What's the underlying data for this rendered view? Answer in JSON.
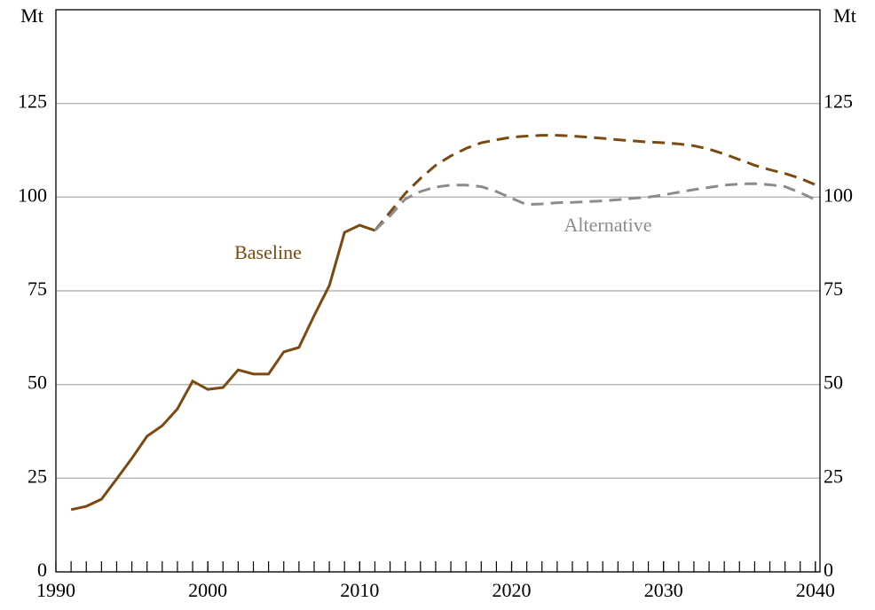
{
  "chart_data": {
    "type": "line",
    "y_label": "Mt",
    "x": [
      1991,
      1992,
      1993,
      1994,
      1995,
      1996,
      1997,
      1998,
      1999,
      2000,
      2001,
      2002,
      2003,
      2004,
      2005,
      2006,
      2007,
      2008,
      2009,
      2010,
      2011,
      2012,
      2013,
      2014,
      2015,
      2016,
      2017,
      2018,
      2019,
      2020,
      2021,
      2022,
      2023,
      2024,
      2025,
      2026,
      2027,
      2028,
      2029,
      2030,
      2031,
      2032,
      2033,
      2034,
      2035,
      2036,
      2037,
      2038,
      2039,
      2040
    ],
    "series": [
      {
        "name": "Baseline",
        "color": "#7b4a12",
        "projection_from": 2011,
        "values": [
          16.6,
          17.5,
          19.4,
          24.8,
          30.3,
          36.2,
          39,
          43.5,
          50.9,
          48.7,
          49.2,
          53.9,
          52.8,
          52.8,
          58.7,
          59.9,
          68.4,
          76.4,
          90.6,
          92.5,
          91.1,
          96,
          101,
          105,
          108.5,
          111,
          113,
          114.5,
          115.3,
          116,
          116.3,
          116.5,
          116.5,
          116.3,
          116,
          115.7,
          115.3,
          115,
          114.7,
          114.5,
          114.2,
          113.7,
          112.8,
          111.5,
          110,
          108.5,
          107.3,
          106.3,
          105,
          103.3
        ]
      },
      {
        "name": "Alternative",
        "color": "#8c8c8c",
        "projection_from": 2011,
        "values": [
          null,
          null,
          null,
          null,
          null,
          null,
          null,
          null,
          null,
          null,
          null,
          null,
          null,
          null,
          null,
          null,
          null,
          null,
          null,
          null,
          91.1,
          95,
          99.5,
          101.5,
          102.7,
          103.2,
          103.2,
          102.8,
          101.5,
          99.7,
          98,
          98.2,
          98.5,
          98.6,
          98.8,
          99,
          99.3,
          99.7,
          100,
          100.6,
          101.3,
          102,
          102.6,
          103.2,
          103.5,
          103.6,
          103.3,
          102.8,
          101.2,
          99.3
        ]
      }
    ],
    "xlim": [
      1990,
      2040.3
    ],
    "xticks": [
      1990,
      2000,
      2010,
      2020,
      2030,
      2040
    ],
    "ylim": [
      0,
      150
    ],
    "yticks": [
      0,
      25,
      50,
      75,
      100,
      125
    ],
    "grid": true
  }
}
